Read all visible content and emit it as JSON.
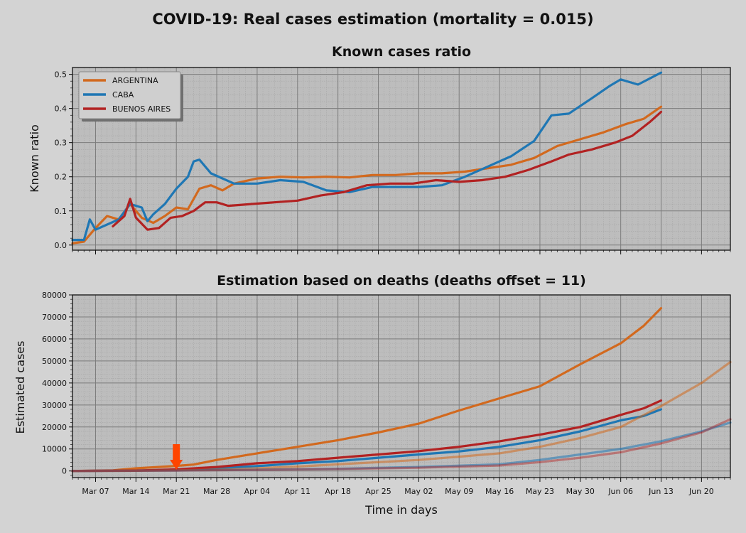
{
  "figure": {
    "suptitle": "COVID-19: Real cases estimation (mortality = 0.015)",
    "xlabel": "Time in days"
  },
  "colors": {
    "background": "#d3d3d3",
    "axes_bg": "#bdbdbd",
    "grid_major": "#7d7d7d",
    "grid_minor": "#a6a6a6",
    "marker": "#ff4500"
  },
  "chart_data": [
    {
      "type": "line",
      "title": "Known cases ratio",
      "ylabel": "Known ratio",
      "ylim": [
        -0.015,
        0.52
      ],
      "yticks": [
        0.0,
        0.1,
        0.2,
        0.3,
        0.4,
        0.5
      ],
      "ytick_labels": [
        "0.0",
        "0.1",
        "0.2",
        "0.3",
        "0.4",
        "0.5"
      ],
      "grid": true,
      "legend": "upper-left",
      "series": [
        {
          "name": "ARGENTINA",
          "color": "#d2691e",
          "x": [
            "2020-03-03",
            "2020-03-05",
            "2020-03-07",
            "2020-03-09",
            "2020-03-11",
            "2020-03-13",
            "2020-03-15",
            "2020-03-17",
            "2020-03-19",
            "2020-03-21",
            "2020-03-23",
            "2020-03-25",
            "2020-03-27",
            "2020-03-29",
            "2020-03-31",
            "2020-04-04",
            "2020-04-08",
            "2020-04-12",
            "2020-04-16",
            "2020-04-20",
            "2020-04-24",
            "2020-04-28",
            "2020-05-02",
            "2020-05-06",
            "2020-05-10",
            "2020-05-14",
            "2020-05-18",
            "2020-05-22",
            "2020-05-26",
            "2020-05-30",
            "2020-06-03",
            "2020-06-07",
            "2020-06-10",
            "2020-06-13"
          ],
          "values": [
            0.005,
            0.01,
            0.05,
            0.085,
            0.075,
            0.12,
            0.08,
            0.065,
            0.085,
            0.11,
            0.105,
            0.165,
            0.175,
            0.16,
            0.18,
            0.195,
            0.2,
            0.198,
            0.2,
            0.198,
            0.205,
            0.205,
            0.21,
            0.21,
            0.215,
            0.225,
            0.235,
            0.255,
            0.29,
            0.31,
            0.33,
            0.355,
            0.37,
            0.405
          ]
        },
        {
          "name": "CABA",
          "color": "#1f77b4",
          "x": [
            "2020-03-03",
            "2020-03-05",
            "2020-03-06",
            "2020-03-07",
            "2020-03-09",
            "2020-03-11",
            "2020-03-13",
            "2020-03-15",
            "2020-03-16",
            "2020-03-17",
            "2020-03-19",
            "2020-03-21",
            "2020-03-23",
            "2020-03-24",
            "2020-03-25",
            "2020-03-27",
            "2020-03-29",
            "2020-03-31",
            "2020-04-04",
            "2020-04-08",
            "2020-04-12",
            "2020-04-16",
            "2020-04-20",
            "2020-04-24",
            "2020-04-28",
            "2020-05-02",
            "2020-05-06",
            "2020-05-10",
            "2020-05-14",
            "2020-05-18",
            "2020-05-22",
            "2020-05-25",
            "2020-05-28",
            "2020-06-01",
            "2020-06-04",
            "2020-06-06",
            "2020-06-09",
            "2020-06-13"
          ],
          "values": [
            0.015,
            0.015,
            0.075,
            0.045,
            0.06,
            0.075,
            0.12,
            0.11,
            0.07,
            0.09,
            0.12,
            0.165,
            0.2,
            0.245,
            0.25,
            0.21,
            0.195,
            0.18,
            0.18,
            0.19,
            0.185,
            0.16,
            0.155,
            0.17,
            0.17,
            0.17,
            0.175,
            0.2,
            0.23,
            0.26,
            0.305,
            0.38,
            0.385,
            0.43,
            0.465,
            0.485,
            0.47,
            0.505
          ]
        },
        {
          "name": "BUENOS AIRES",
          "color": "#b22222",
          "x": [
            "2020-03-10",
            "2020-03-12",
            "2020-03-13",
            "2020-03-14",
            "2020-03-16",
            "2020-03-18",
            "2020-03-20",
            "2020-03-22",
            "2020-03-24",
            "2020-03-26",
            "2020-03-28",
            "2020-03-30",
            "2020-04-03",
            "2020-04-07",
            "2020-04-11",
            "2020-04-15",
            "2020-04-19",
            "2020-04-23",
            "2020-04-27",
            "2020-05-01",
            "2020-05-05",
            "2020-05-09",
            "2020-05-13",
            "2020-05-17",
            "2020-05-21",
            "2020-05-25",
            "2020-05-28",
            "2020-06-01",
            "2020-06-05",
            "2020-06-08",
            "2020-06-11",
            "2020-06-13"
          ],
          "values": [
            0.055,
            0.085,
            0.135,
            0.08,
            0.045,
            0.05,
            0.08,
            0.085,
            0.1,
            0.125,
            0.125,
            0.115,
            0.12,
            0.125,
            0.13,
            0.145,
            0.155,
            0.175,
            0.18,
            0.18,
            0.19,
            0.185,
            0.19,
            0.2,
            0.22,
            0.245,
            0.265,
            0.28,
            0.3,
            0.32,
            0.36,
            0.39
          ]
        }
      ]
    },
    {
      "type": "line",
      "title": "Estimation based on deaths (deaths offset = 11)",
      "ylabel": "Estimated cases",
      "xlabel": "Time in days",
      "ylim": [
        -3000,
        80000
      ],
      "yticks": [
        0,
        10000,
        20000,
        30000,
        40000,
        50000,
        60000,
        70000,
        80000
      ],
      "ytick_labels": [
        "0",
        "10000",
        "20000",
        "30000",
        "40000",
        "50000",
        "60000",
        "70000",
        "80000"
      ],
      "xlim": [
        "2020-03-03",
        "2020-06-25"
      ],
      "xticks": [
        "2020-03-07",
        "2020-03-14",
        "2020-03-21",
        "2020-03-28",
        "2020-04-04",
        "2020-04-11",
        "2020-04-18",
        "2020-04-25",
        "2020-05-02",
        "2020-05-09",
        "2020-05-16",
        "2020-05-23",
        "2020-05-30",
        "2020-06-06",
        "2020-06-13",
        "2020-06-20"
      ],
      "xtick_labels": [
        "Mar 07",
        "Mar 14",
        "Mar 21",
        "Mar 28",
        "Apr 04",
        "Apr 11",
        "Apr 18",
        "Apr 25",
        "May 02",
        "May 09",
        "May 16",
        "May 23",
        "May 30",
        "Jun 06",
        "Jun 13",
        "Jun 20"
      ],
      "grid": true,
      "annotation": {
        "type": "arrow-down",
        "x": "2020-03-21",
        "y": 7000
      },
      "series": [
        {
          "name": "ARGENTINA",
          "color": "#d2691e",
          "x": [
            "2020-03-03",
            "2020-03-10",
            "2020-03-14",
            "2020-03-21",
            "2020-03-24",
            "2020-03-28",
            "2020-04-04",
            "2020-04-11",
            "2020-04-18",
            "2020-04-25",
            "2020-05-02",
            "2020-05-09",
            "2020-05-16",
            "2020-05-23",
            "2020-05-30",
            "2020-06-06",
            "2020-06-10",
            "2020-06-13"
          ],
          "values": [
            0,
            300,
            1200,
            2300,
            2900,
            5000,
            8000,
            11000,
            14000,
            17500,
            21500,
            27500,
            33000,
            38500,
            48500,
            58000,
            66000,
            74000
          ]
        },
        {
          "name": "CABA",
          "color": "#1f77b4",
          "x": [
            "2020-03-03",
            "2020-03-14",
            "2020-03-21",
            "2020-03-28",
            "2020-04-04",
            "2020-04-11",
            "2020-04-18",
            "2020-04-25",
            "2020-05-02",
            "2020-05-09",
            "2020-05-16",
            "2020-05-23",
            "2020-05-30",
            "2020-06-06",
            "2020-06-10",
            "2020-06-13"
          ],
          "values": [
            0,
            200,
            600,
            1200,
            2200,
            3500,
            4500,
            6000,
            7500,
            8900,
            11000,
            14000,
            18000,
            23000,
            25000,
            28000
          ]
        },
        {
          "name": "BUENOS AIRES",
          "color": "#b22222",
          "x": [
            "2020-03-03",
            "2020-03-14",
            "2020-03-21",
            "2020-03-28",
            "2020-04-04",
            "2020-04-11",
            "2020-04-18",
            "2020-04-25",
            "2020-05-02",
            "2020-05-09",
            "2020-05-16",
            "2020-05-23",
            "2020-05-30",
            "2020-06-06",
            "2020-06-10",
            "2020-06-13"
          ],
          "values": [
            0,
            200,
            700,
            1800,
            3500,
            4500,
            6000,
            7500,
            9000,
            11000,
            13500,
            16500,
            20000,
            25500,
            28500,
            32000
          ]
        },
        {
          "name": "ARGENTINA",
          "color": "#d2691e",
          "alpha": 0.55,
          "x": [
            "2020-03-03",
            "2020-03-14",
            "2020-03-21",
            "2020-03-28",
            "2020-04-04",
            "2020-04-11",
            "2020-04-18",
            "2020-04-25",
            "2020-05-02",
            "2020-05-09",
            "2020-05-16",
            "2020-05-23",
            "2020-05-30",
            "2020-06-06",
            "2020-06-13",
            "2020-06-20",
            "2020-06-25"
          ],
          "values": [
            0,
            100,
            300,
            600,
            1200,
            2000,
            3000,
            4000,
            5000,
            6500,
            8000,
            11000,
            15000,
            20000,
            29500,
            40000,
            49500
          ]
        },
        {
          "name": "CABA",
          "color": "#1f77b4",
          "alpha": 0.55,
          "x": [
            "2020-03-03",
            "2020-03-21",
            "2020-04-04",
            "2020-04-18",
            "2020-05-02",
            "2020-05-16",
            "2020-05-23",
            "2020-05-30",
            "2020-06-06",
            "2020-06-13",
            "2020-06-20",
            "2020-06-25"
          ],
          "values": [
            0,
            200,
            600,
            1000,
            1800,
            3000,
            5000,
            7500,
            10000,
            13500,
            18000,
            22000
          ]
        },
        {
          "name": "BUENOS AIRES",
          "color": "#b22222",
          "alpha": 0.45,
          "x": [
            "2020-03-03",
            "2020-03-21",
            "2020-04-04",
            "2020-04-18",
            "2020-05-02",
            "2020-05-16",
            "2020-05-23",
            "2020-05-30",
            "2020-06-06",
            "2020-06-13",
            "2020-06-20",
            "2020-06-25"
          ],
          "values": [
            0,
            200,
            500,
            900,
            1500,
            2500,
            4000,
            6000,
            8500,
            12500,
            17500,
            23500
          ]
        }
      ]
    }
  ]
}
